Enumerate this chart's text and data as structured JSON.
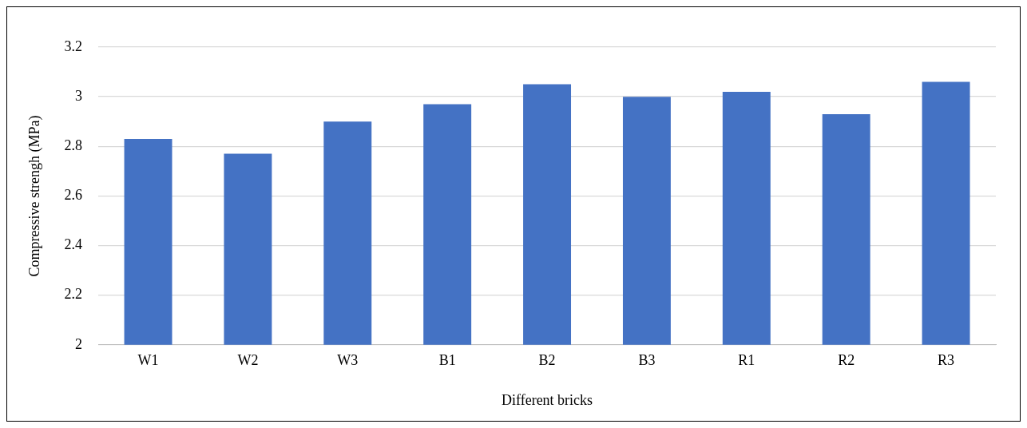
{
  "chart_data": {
    "type": "bar",
    "xlabel": "Different bricks",
    "ylabel": "Compressive strengh (MPa)",
    "categories": [
      "W1",
      "W2",
      "W3",
      "B1",
      "B2",
      "B3",
      "R1",
      "R2",
      "R3"
    ],
    "values": [
      2.83,
      2.77,
      2.9,
      2.97,
      3.05,
      3.0,
      3.02,
      2.93,
      3.06
    ],
    "color": "#4472c4",
    "ylim": [
      2,
      3.2
    ],
    "yticks": [
      2,
      {
        "value": 2.2,
        "label": "2.2"
      },
      {
        "value": 2.4,
        "label": "2.4"
      },
      {
        "value": 2.6,
        "label": "2.6"
      },
      {
        "value": 2.8,
        "label": "2.8"
      },
      3,
      {
        "value": 3.2,
        "label": "3.2"
      }
    ],
    "grid": "y",
    "legend": false
  }
}
